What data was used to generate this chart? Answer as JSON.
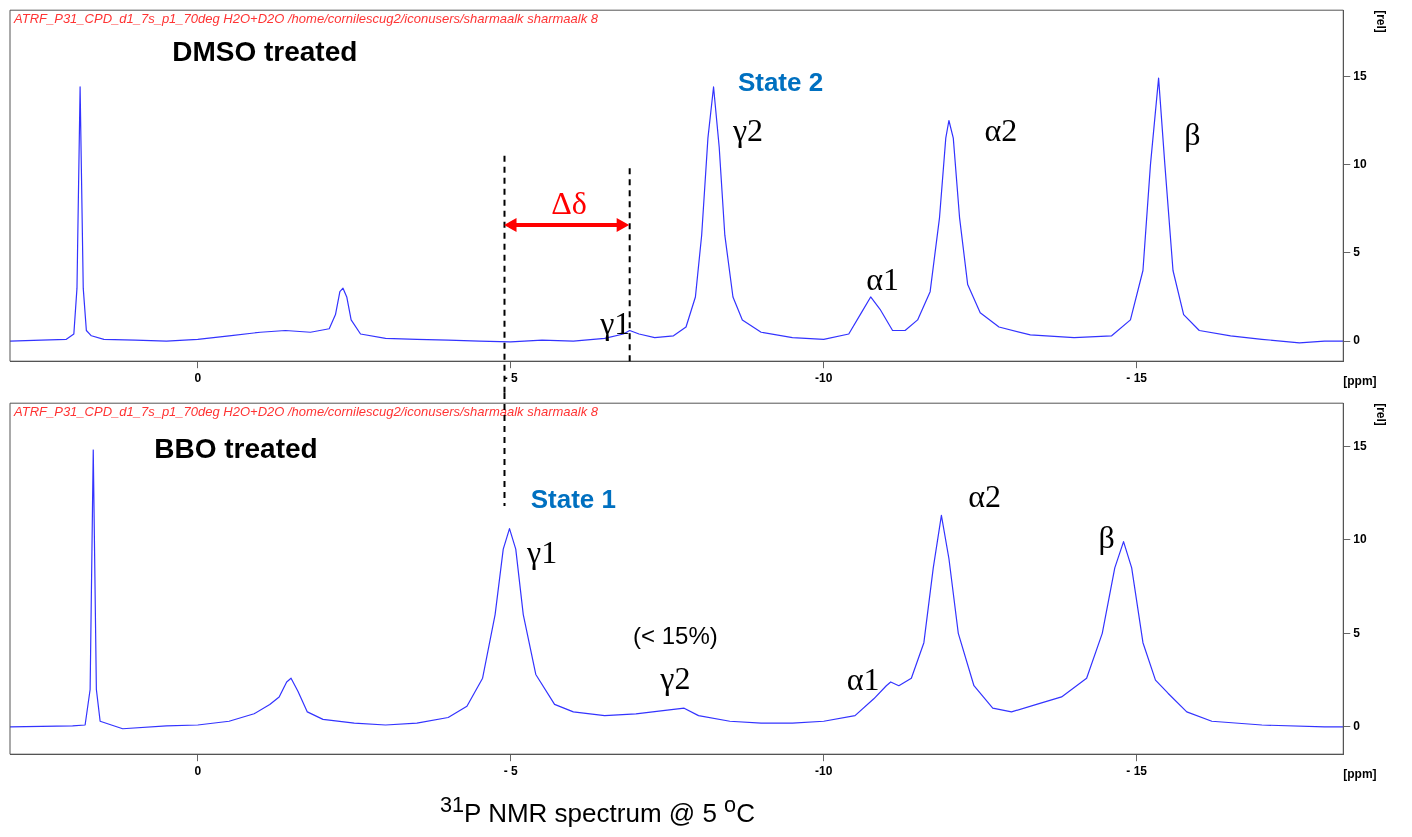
{
  "chart_data": [
    {
      "type": "line",
      "xlabel": "[ppm]",
      "ylabel": "[rel]",
      "xlim": [
        3.0,
        -18.3
      ],
      "ylim": [
        -1.14,
        18.75
      ],
      "xticks": [
        0,
        {
          "value": -5,
          "label": "- 5"
        },
        {
          "value": -10,
          "label": "-10"
        },
        {
          "value": -15,
          "label": "- 15"
        }
      ],
      "yticks": [
        0,
        5,
        10,
        15
      ],
      "grid": false,
      "legend": false,
      "series": [
        {
          "color": "#3333ff",
          "x": [
            3.0,
            2.5,
            2.1,
            1.98,
            1.93,
            1.88,
            1.83,
            1.78,
            1.7,
            1.5,
            1.0,
            0.5,
            0,
            -0.5,
            -1.0,
            -1.4,
            -1.8,
            -2.1,
            -2.2,
            -2.27,
            -2.32,
            -2.38,
            -2.45,
            -2.6,
            -3.0,
            -3.5,
            -4.0,
            -4.5,
            -5.0,
            -5.5,
            -6.0,
            -6.5,
            -6.8,
            -6.9,
            -7.05,
            -7.3,
            -7.6,
            -7.8,
            -7.95,
            -8.05,
            -8.15,
            -8.24,
            -8.33,
            -8.42,
            -8.55,
            -8.7,
            -9.0,
            -9.5,
            -10.0,
            -10.4,
            -10.6,
            -10.75,
            -10.9,
            -11.1,
            -11.3,
            -11.5,
            -11.7,
            -11.85,
            -11.95,
            -12.0,
            -12.07,
            -12.17,
            -12.3,
            -12.5,
            -12.8,
            -13.3,
            -14.0,
            -14.6,
            -14.9,
            -15.1,
            -15.22,
            -15.35,
            -15.45,
            -15.58,
            -15.75,
            -16.0,
            -16.5,
            -17.0,
            -17.6,
            -18.0,
            -18.3
          ],
          "values": [
            0.0,
            0.05,
            0.1,
            0.4,
            3,
            14.4,
            3,
            0.6,
            0.3,
            0.1,
            0.05,
            0.0,
            0.1,
            0.3,
            0.5,
            0.6,
            0.5,
            0.7,
            1.5,
            2.8,
            3.0,
            2.5,
            1.2,
            0.4,
            0.15,
            0.1,
            0.05,
            0.0,
            -0.05,
            0.05,
            0.0,
            0.15,
            0.4,
            0.6,
            0.4,
            0.2,
            0.3,
            0.8,
            2.5,
            6,
            11.5,
            14.4,
            11,
            6,
            2.5,
            1.2,
            0.5,
            0.2,
            0.1,
            0.4,
            1.6,
            2.5,
            1.8,
            0.6,
            0.6,
            1.2,
            2.8,
            7,
            11.5,
            12.5,
            11.5,
            7,
            3.2,
            1.6,
            0.8,
            0.35,
            0.2,
            0.3,
            1.2,
            4,
            10,
            14.9,
            10,
            4,
            1.5,
            0.6,
            0.3,
            0.1,
            -0.1,
            0.0,
            0.0
          ]
        }
      ],
      "ref_lines": [
        {
          "axis": "x",
          "value": -4.9,
          "color": "#000000",
          "line_style": "dashed"
        },
        {
          "axis": "x",
          "value": -6.9,
          "color": "#000000",
          "line_style": "dashed"
        }
      ],
      "annotations": [
        "ATRF_P31_CPD_d1_7s_p1_70deg H2O+D2O /home/cornilescug2/iconusers/sharmaalk sharmaalk 8",
        "DMSO treated",
        "State 2",
        "γ2",
        "α2",
        "β",
        "α1",
        "γ1",
        "Δδ"
      ]
    },
    {
      "type": "line",
      "xlabel": "[ppm]",
      "ylabel": "[rel]",
      "xlim": [
        3.0,
        -18.3
      ],
      "ylim": [
        -1.46,
        17.3
      ],
      "xticks": [
        0,
        {
          "value": -5,
          "label": "- 5"
        },
        {
          "value": -10,
          "label": "-10"
        },
        {
          "value": -15,
          "label": "- 15"
        }
      ],
      "yticks": [
        0,
        5,
        10,
        15
      ],
      "grid": false,
      "legend": false,
      "series": [
        {
          "color": "#3333ff",
          "x": [
            3.0,
            2.0,
            1.8,
            1.72,
            1.67,
            1.62,
            1.56,
            1.2,
            0.5,
            0,
            -0.5,
            -0.9,
            -1.15,
            -1.3,
            -1.42,
            -1.49,
            -1.6,
            -1.75,
            -2.0,
            -2.5,
            -3.0,
            -3.5,
            -4.0,
            -4.3,
            -4.55,
            -4.75,
            -4.88,
            -4.98,
            -5.08,
            -5.2,
            -5.4,
            -5.7,
            -6.0,
            -6.5,
            -7.0,
            -7.5,
            -7.77,
            -8.0,
            -8.5,
            -9.0,
            -9.5,
            -10.0,
            -10.5,
            -10.8,
            -11.0,
            -11.07,
            -11.2,
            -11.4,
            -11.6,
            -11.75,
            -11.88,
            -12.0,
            -12.15,
            -12.4,
            -12.7,
            -13.0,
            -13.4,
            -13.8,
            -14.2,
            -14.45,
            -14.65,
            -14.79,
            -14.92,
            -15.1,
            -15.3,
            -15.5,
            -15.8,
            -16.2,
            -17.0,
            -18.0,
            -18.3
          ],
          "values": [
            0,
            0.05,
            0.1,
            2,
            14.8,
            2,
            0.3,
            -0.1,
            0.05,
            0.1,
            0.3,
            0.7,
            1.2,
            1.6,
            2.4,
            2.6,
            1.9,
            0.8,
            0.4,
            0.2,
            0.1,
            0.2,
            0.5,
            1.1,
            2.6,
            6,
            9.5,
            10.6,
            9.5,
            6,
            2.8,
            1.2,
            0.8,
            0.6,
            0.7,
            0.9,
            1.0,
            0.6,
            0.3,
            0.2,
            0.2,
            0.3,
            0.6,
            1.5,
            2.2,
            2.4,
            2.2,
            2.6,
            4.5,
            8.5,
            11.3,
            9,
            5,
            2.2,
            1.0,
            0.8,
            1.2,
            1.6,
            2.6,
            5,
            8.5,
            9.9,
            8.5,
            4.5,
            2.5,
            1.8,
            0.8,
            0.3,
            0.1,
            0.0,
            0.0
          ]
        }
      ],
      "ref_lines": [
        {
          "axis": "x",
          "value": -4.9,
          "color": "#000000",
          "line_style": "dashed"
        }
      ],
      "annotations": [
        "ATRF_P31_CPD_d1_7s_p1_70deg H2O+D2O /home/cornilescug2/iconusers/sharmaalk sharmaalk 8",
        "BBO treated",
        "State 1",
        "γ1",
        "(< 15%)",
        "γ2",
        "α1",
        "α2",
        "β",
        "$^{31}$P NMR spectrum @ 5 $^{o}$C"
      ]
    }
  ]
}
